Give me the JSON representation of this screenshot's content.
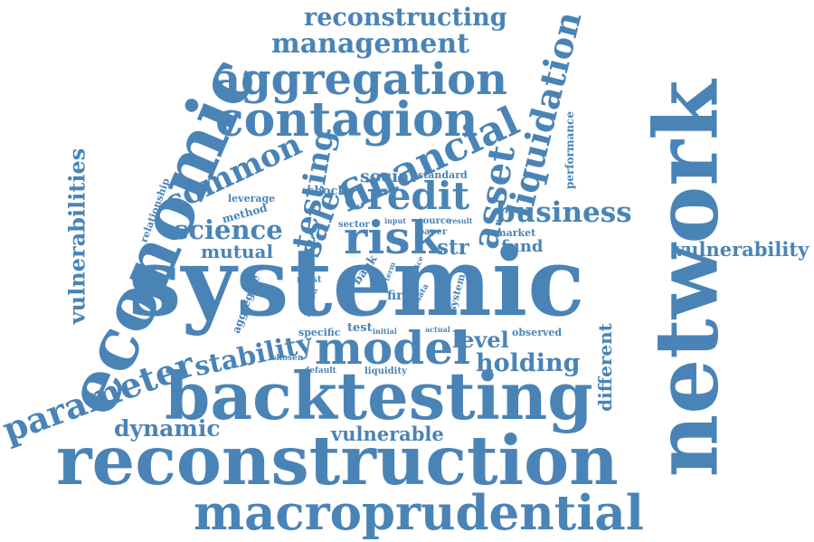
{
  "color": "#4a84b6",
  "words": [
    {
      "id": "systemic",
      "text": "systemic"
    },
    {
      "id": "network",
      "text": "network"
    },
    {
      "id": "reconstruction",
      "text": "reconstruction"
    },
    {
      "id": "backtesting",
      "text": "backtesting"
    },
    {
      "id": "economic",
      "text": "economic"
    },
    {
      "id": "macroprudential",
      "text": "macroprudential"
    },
    {
      "id": "contagion",
      "text": "contagion"
    },
    {
      "id": "aggregation",
      "text": "aggregation"
    },
    {
      "id": "model",
      "text": "model"
    },
    {
      "id": "financial",
      "text": "financial"
    },
    {
      "id": "risk",
      "text": "risk"
    },
    {
      "id": "credit",
      "text": "credit"
    },
    {
      "id": "management",
      "text": "management"
    },
    {
      "id": "reconstructing",
      "text": "reconstructing"
    },
    {
      "id": "liquidation",
      "text": "liquidation"
    },
    {
      "id": "business",
      "text": "business"
    },
    {
      "id": "asset",
      "text": "asset"
    },
    {
      "id": "parameter",
      "text": "parameter"
    },
    {
      "id": "vulnerabilities",
      "text": "vulnerabilities"
    },
    {
      "id": "common",
      "text": "common"
    },
    {
      "id": "testing",
      "text": "testing"
    },
    {
      "id": "sale",
      "text": "sale"
    },
    {
      "id": "science",
      "text": "science"
    },
    {
      "id": "stability",
      "text": "stability"
    },
    {
      "id": "dynamic",
      "text": "dynamic"
    },
    {
      "id": "vulnerable",
      "text": "vulnerable"
    },
    {
      "id": "vulnerability",
      "text": "vulnerability"
    },
    {
      "id": "holding",
      "text": "holding"
    },
    {
      "id": "level",
      "text": "level"
    },
    {
      "id": "different",
      "text": "different"
    },
    {
      "id": "mutual",
      "text": "mutual"
    },
    {
      "id": "str",
      "text": "str"
    },
    {
      "id": "fund",
      "text": "fund"
    },
    {
      "id": "social",
      "text": "social"
    },
    {
      "id": "shock",
      "text": "shock"
    },
    {
      "id": "method",
      "text": "method"
    },
    {
      "id": "leverage",
      "text": "leverage"
    },
    {
      "id": "relationship",
      "text": "relationship"
    },
    {
      "id": "performance",
      "text": "performance"
    },
    {
      "id": "standard",
      "text": "standard"
    },
    {
      "id": "market",
      "text": "market"
    },
    {
      "id": "sector",
      "text": "sector"
    },
    {
      "id": "input",
      "text": "input"
    },
    {
      "id": "source",
      "text": "source"
    },
    {
      "id": "result",
      "text": "result"
    },
    {
      "id": "paper",
      "text": "paper"
    },
    {
      "id": "bank",
      "text": "bank"
    },
    {
      "id": "term",
      "text": "term"
    },
    {
      "id": "price",
      "text": "price"
    },
    {
      "id": "case",
      "text": "case"
    },
    {
      "id": "fire",
      "text": "fire"
    },
    {
      "id": "data",
      "text": "data"
    },
    {
      "id": "system",
      "text": "system"
    },
    {
      "id": "most",
      "text": "most"
    },
    {
      "id": "period",
      "text": "period"
    },
    {
      "id": "aggregate",
      "text": "aggregate"
    },
    {
      "id": "test",
      "text": "test"
    },
    {
      "id": "specific",
      "text": "specific"
    },
    {
      "id": "initial",
      "text": "initial"
    },
    {
      "id": "actual",
      "text": "actual"
    },
    {
      "id": "observed",
      "text": "observed"
    },
    {
      "id": "chosen",
      "text": "chosen"
    },
    {
      "id": "default",
      "text": "default"
    },
    {
      "id": "liquidity",
      "text": "liquidity"
    }
  ]
}
